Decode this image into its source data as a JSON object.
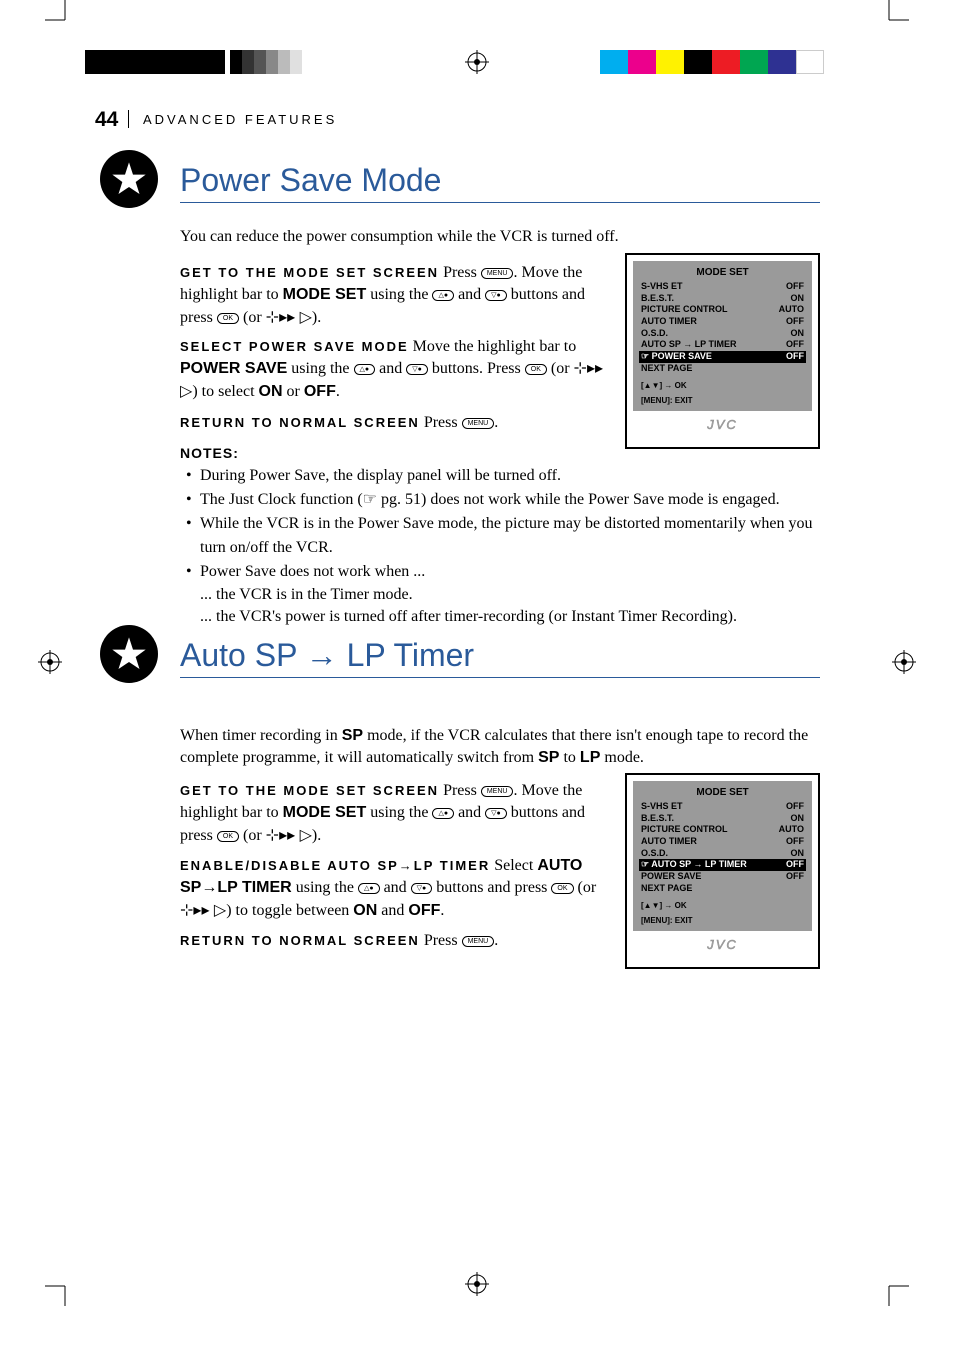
{
  "page_number": "44",
  "header": "ADVANCED FEATURES",
  "colors": {
    "brand_blue": "#2a5a9a",
    "osd_gray": "#9a9a9a",
    "black": "#000000"
  },
  "print_bars_left": [
    "#000000",
    "#000000",
    "#000000",
    "#000000",
    "#000000"
  ],
  "gray_steps": [
    "#000000",
    "#333333",
    "#555555",
    "#888888",
    "#bbbbbb",
    "#e0e0e0"
  ],
  "print_bars_right": [
    "#00aeef",
    "#ec008c",
    "#fff200",
    "#000000",
    "#ed1c24",
    "#00a651",
    "#2e3192",
    "#ffffff"
  ],
  "section1": {
    "title": "Power Save Mode",
    "intro": "You can reduce the power consumption while the VCR is turned off.",
    "step1_label": "GET TO THE MODE SET SCREEN",
    "step1_text_a": "Press ",
    "step1_text_b": ". Move the highlight bar to ",
    "step1_mode": "MODE SET",
    "step1_text_c": " using the ",
    "step1_text_d": " and ",
    "step1_text_e": " buttons and press ",
    "step1_text_f": " (or ",
    "step1_text_g": ").",
    "step2_label": "SELECT POWER SAVE MODE",
    "step2_text_a": "Move the highlight bar to ",
    "step2_target": "POWER SAVE",
    "step2_text_b": " using the ",
    "step2_text_c": " and ",
    "step2_text_d": " buttons. Press ",
    "step2_text_e": " (or ",
    "step2_text_f": ") to select ",
    "step2_on": "ON",
    "step2_or": " or ",
    "step2_off": "OFF",
    "step2_period": ".",
    "step3_label": "RETURN TO NORMAL SCREEN",
    "step3_text": "Press ",
    "step3_period": ".",
    "notes_label": "NOTES:",
    "notes": [
      "During Power Save, the display panel will be turned off.",
      "The Just Clock function (☞ pg. 51) does not work while the Power Save mode is engaged.",
      "While the VCR is in the Power Save mode, the picture may be distorted momentarily when you turn on/off the VCR.",
      "Power Save does not work when ..."
    ],
    "subnotes": [
      "... the VCR is in the Timer mode.",
      "... the VCR's power is turned off after timer-recording (or Instant Timer Recording)."
    ],
    "osd": {
      "title": "MODE SET",
      "rows": [
        {
          "label": "S-VHS ET",
          "value": "OFF"
        },
        {
          "label": "B.E.S.T.",
          "value": "ON"
        },
        {
          "label": "PICTURE CONTROL",
          "value": "AUTO"
        },
        {
          "label": "AUTO TIMER",
          "value": "OFF"
        },
        {
          "label": "O.S.D.",
          "value": "ON"
        },
        {
          "label": "AUTO SP → LP TIMER",
          "value": "OFF"
        }
      ],
      "highlight": {
        "label": "☞ POWER SAVE",
        "value": "OFF"
      },
      "after": [
        {
          "label": "NEXT PAGE",
          "value": ""
        }
      ],
      "footer1": "[▲▼] → OK",
      "footer2": "[MENU]: EXIT",
      "brand": "JVC"
    }
  },
  "section2": {
    "title_a": "Auto SP ",
    "title_arrow": "→",
    "title_b": " LP Timer",
    "intro_a": "When timer recording in ",
    "intro_sp": "SP",
    "intro_b": " mode, if the VCR calculates that there isn't enough tape to record the complete programme, it will automatically switch from ",
    "intro_c": " to ",
    "intro_lp": "LP",
    "intro_d": " mode.",
    "step1_label": "GET TO THE MODE SET SCREEN",
    "step1_text_a": "Press ",
    "step1_text_b": ". Move the highlight bar to ",
    "step1_mode": "MODE SET",
    "step1_text_c": " using the ",
    "step1_text_d": " and ",
    "step1_text_e": " buttons and press ",
    "step1_text_f": " (or ",
    "step1_text_g": ").",
    "step2_label": "ENABLE/DISABLE AUTO SP→LP TIMER",
    "step2_text_a": "Select ",
    "step2_target": "AUTO SP→LP TIMER",
    "step2_text_b": " using the ",
    "step2_text_c": " and ",
    "step2_text_d": " buttons and press ",
    "step2_text_e": " (or ",
    "step2_text_f": ") to toggle between ",
    "step2_on": "ON",
    "step2_and": " and ",
    "step2_off": "OFF",
    "step2_period": ".",
    "step3_label": "RETURN TO NORMAL SCREEN",
    "step3_text": "Press ",
    "step3_period": ".",
    "osd": {
      "title": "MODE SET",
      "rows": [
        {
          "label": "S-VHS ET",
          "value": "OFF"
        },
        {
          "label": "B.E.S.T.",
          "value": "ON"
        },
        {
          "label": "PICTURE CONTROL",
          "value": "AUTO"
        },
        {
          "label": "AUTO TIMER",
          "value": "OFF"
        },
        {
          "label": "O.S.D.",
          "value": "ON"
        }
      ],
      "highlight": {
        "label": "☞ AUTO SP → LP TIMER",
        "value": "OFF"
      },
      "after": [
        {
          "label": "POWER SAVE",
          "value": "OFF"
        },
        {
          "label": "NEXT PAGE",
          "value": ""
        }
      ],
      "footer1": "[▲▼] → OK",
      "footer2": "[MENU]: EXIT",
      "brand": "JVC"
    }
  },
  "buttons": {
    "menu": "MENU",
    "ok": "OK",
    "up": "△●",
    "down": "▽●",
    "play_combo": "⊹▸▸ ▷"
  }
}
